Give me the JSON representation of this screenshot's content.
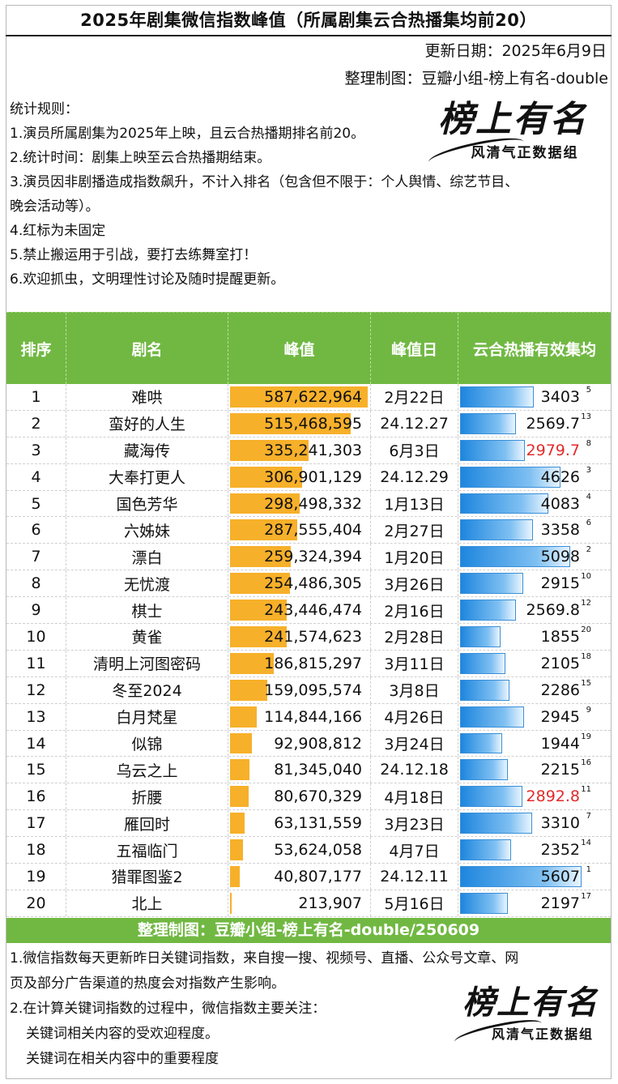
{
  "header": {
    "title": "2025年剧集微信指数峰值（所属剧集云合热播集均前20）",
    "update_date": "更新日期：2025年6月9日",
    "credit": "整理制图：豆瓣小组-榜上有名-double"
  },
  "rules": {
    "heading": "统计规则：",
    "items": [
      "1.演员所属剧集为2025年上映，且云合热播期排名前20。",
      "2.统计时间：剧集上映至云合热播期结束。",
      "3.演员因非剧播造成指数飙升，不计入排名（包含但不限于：个人舆情、综艺节目、",
      "晚会活动等）。",
      "4.红标为未固定",
      "5.禁止搬运用于引战，要打去练舞室打！",
      "6.欢迎抓虫，文明理性讨论及随时提醒更新。"
    ]
  },
  "logo": {
    "brand": "榜上有名",
    "slogan": "风清气正数据组"
  },
  "table": {
    "headers": [
      "排序",
      "剧名",
      "峰值",
      "峰值日",
      "云合热播有效集均"
    ],
    "colors": {
      "header_bg": "#71b843",
      "peak_bar": "#f7b02a",
      "eff_bar": "#1e86de",
      "unfixed": "#e12b2b"
    },
    "rows": [
      {
        "rank": "1",
        "name": "难哄",
        "peak": "587,622,964",
        "peak_num": 587622964,
        "date": "2月22日",
        "eff": "3403",
        "eff_num": 3403,
        "eff_rank": "5",
        "unfixed": false
      },
      {
        "rank": "2",
        "name": "蛮好的人生",
        "peak": "515,468,595",
        "peak_num": 515468595,
        "date": "24.12.27",
        "eff": "2569.7",
        "eff_num": 2569.7,
        "eff_rank": "13",
        "unfixed": false
      },
      {
        "rank": "3",
        "name": "藏海传",
        "peak": "335,241,303",
        "peak_num": 335241303,
        "date": "6月3日",
        "eff": "2979.7",
        "eff_num": 2979.7,
        "eff_rank": "8",
        "unfixed": true
      },
      {
        "rank": "4",
        "name": "大奉打更人",
        "peak": "306,901,129",
        "peak_num": 306901129,
        "date": "24.12.29",
        "eff": "4626",
        "eff_num": 4626,
        "eff_rank": "3",
        "unfixed": false
      },
      {
        "rank": "5",
        "name": "国色芳华",
        "peak": "298,498,332",
        "peak_num": 298498332,
        "date": "1月13日",
        "eff": "4083",
        "eff_num": 4083,
        "eff_rank": "4",
        "unfixed": false
      },
      {
        "rank": "6",
        "name": "六姊妹",
        "peak": "287,555,404",
        "peak_num": 287555404,
        "date": "2月27日",
        "eff": "3358",
        "eff_num": 3358,
        "eff_rank": "6",
        "unfixed": false
      },
      {
        "rank": "7",
        "name": "漂白",
        "peak": "259,324,394",
        "peak_num": 259324394,
        "date": "1月20日",
        "eff": "5098",
        "eff_num": 5098,
        "eff_rank": "2",
        "unfixed": false
      },
      {
        "rank": "8",
        "name": "无忧渡",
        "peak": "254,486,305",
        "peak_num": 254486305,
        "date": "3月26日",
        "eff": "2915",
        "eff_num": 2915,
        "eff_rank": "10",
        "unfixed": false
      },
      {
        "rank": "9",
        "name": "棋士",
        "peak": "243,446,474",
        "peak_num": 243446474,
        "date": "2月16日",
        "eff": "2569.8",
        "eff_num": 2569.8,
        "eff_rank": "12",
        "unfixed": false
      },
      {
        "rank": "10",
        "name": "黄雀",
        "peak": "241,574,623",
        "peak_num": 241574623,
        "date": "2月28日",
        "eff": "1855",
        "eff_num": 1855,
        "eff_rank": "20",
        "unfixed": false
      },
      {
        "rank": "11",
        "name": "清明上河图密码",
        "peak": "186,815,297",
        "peak_num": 186815297,
        "date": "3月11日",
        "eff": "2105",
        "eff_num": 2105,
        "eff_rank": "18",
        "unfixed": false
      },
      {
        "rank": "12",
        "name": "冬至2024",
        "peak": "159,095,574",
        "peak_num": 159095574,
        "date": "3月8日",
        "eff": "2286",
        "eff_num": 2286,
        "eff_rank": "15",
        "unfixed": false
      },
      {
        "rank": "13",
        "name": "白月梵星",
        "peak": "114,844,166",
        "peak_num": 114844166,
        "date": "4月26日",
        "eff": "2945",
        "eff_num": 2945,
        "eff_rank": "9",
        "unfixed": false
      },
      {
        "rank": "14",
        "name": "似锦",
        "peak": "92,908,812",
        "peak_num": 92908812,
        "date": "3月24日",
        "eff": "1944",
        "eff_num": 1944,
        "eff_rank": "19",
        "unfixed": false
      },
      {
        "rank": "15",
        "name": "乌云之上",
        "peak": "81,345,040",
        "peak_num": 81345040,
        "date": "24.12.18",
        "eff": "2215",
        "eff_num": 2215,
        "eff_rank": "16",
        "unfixed": false
      },
      {
        "rank": "16",
        "name": "折腰",
        "peak": "80,670,329",
        "peak_num": 80670329,
        "date": "4月18日",
        "eff": "2892.8",
        "eff_num": 2892.8,
        "eff_rank": "11",
        "unfixed": true
      },
      {
        "rank": "17",
        "name": "雁回时",
        "peak": "63,131,559",
        "peak_num": 63131559,
        "date": "3月23日",
        "eff": "3310",
        "eff_num": 3310,
        "eff_rank": "7",
        "unfixed": false
      },
      {
        "rank": "18",
        "name": "五福临门",
        "peak": "53,624,058",
        "peak_num": 53624058,
        "date": "4月7日",
        "eff": "2352",
        "eff_num": 2352,
        "eff_rank": "14",
        "unfixed": false
      },
      {
        "rank": "19",
        "name": "猎罪图鉴2",
        "peak": "40,807,177",
        "peak_num": 40807177,
        "date": "24.12.11",
        "eff": "5607",
        "eff_num": 5607,
        "eff_rank": "1",
        "unfixed": false
      },
      {
        "rank": "20",
        "name": "北上",
        "peak": "213,907",
        "peak_num": 213907,
        "date": "5月16日",
        "eff": "2197",
        "eff_num": 2197,
        "eff_rank": "17",
        "unfixed": false
      }
    ]
  },
  "footer": {
    "banner": "整理制图：豆瓣小组-榜上有名-double/250609",
    "notes": [
      "1.微信指数每天更新昨日关键词指数，来自搜一搜、视频号、直播、公众号文章、网",
      "页及部分广告渠道的热度会对指数产生影响。",
      "2.在计算关键词指数的过程中，微信指数主要关注：",
      "关键词相关内容的受欢迎程度。",
      "关键词在相关内容中的重要程度"
    ]
  }
}
